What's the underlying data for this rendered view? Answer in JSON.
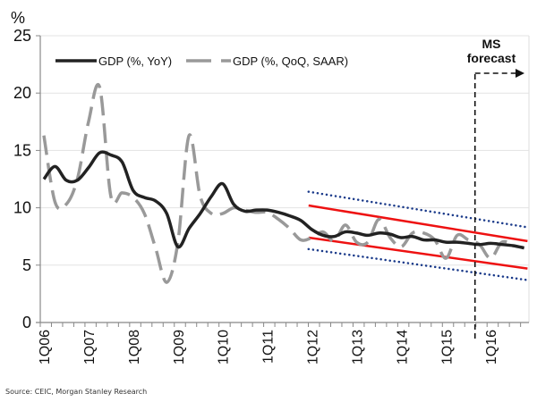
{
  "chart_data": {
    "type": "line",
    "title": "",
    "ylabel": "%",
    "xlabel": "",
    "ylim": [
      0,
      25
    ],
    "yticks": [
      0,
      5,
      10,
      15,
      20,
      25
    ],
    "grid": true,
    "legend_position": "top-left",
    "x_tick_labels": [
      "1Q06",
      "1Q07",
      "1Q08",
      "1Q09",
      "1Q10",
      "1Q11",
      "1Q12",
      "1Q13",
      "1Q14",
      "1Q15",
      "1Q16"
    ],
    "x": [
      "1Q06",
      "2Q06",
      "3Q06",
      "4Q06",
      "1Q07",
      "2Q07",
      "3Q07",
      "4Q07",
      "1Q08",
      "2Q08",
      "3Q08",
      "4Q08",
      "1Q09",
      "2Q09",
      "3Q09",
      "4Q09",
      "1Q10",
      "2Q10",
      "3Q10",
      "4Q10",
      "1Q11",
      "2Q11",
      "3Q11",
      "4Q11",
      "1Q12",
      "2Q12",
      "3Q12",
      "4Q12",
      "1Q13",
      "2Q13",
      "3Q13",
      "4Q13",
      "1Q14",
      "2Q14",
      "3Q14",
      "4Q14",
      "1Q15",
      "2Q15",
      "3Q15",
      "4Q15",
      "1Q16",
      "2Q16",
      "3Q16",
      "4Q16"
    ],
    "series": [
      {
        "name": "GDP (%, YoY)",
        "style": "solid",
        "color": "#222222",
        "values": [
          12.5,
          13.6,
          12.4,
          12.4,
          13.5,
          14.8,
          14.6,
          14.0,
          11.5,
          10.9,
          10.6,
          9.5,
          6.6,
          8.2,
          9.5,
          11.0,
          12.1,
          10.3,
          9.7,
          9.8,
          9.8,
          9.6,
          9.3,
          8.9,
          8.1,
          7.6,
          7.5,
          7.9,
          7.8,
          7.6,
          7.8,
          7.7,
          7.4,
          7.5,
          7.2,
          7.2,
          7.0,
          7.0,
          6.9,
          6.8,
          6.9,
          6.8,
          6.7,
          6.5
        ]
      },
      {
        "name": "GDP (%, QoQ, SAAR)",
        "style": "dashed",
        "color": "#999999",
        "values": [
          16.3,
          10.5,
          10.3,
          12.5,
          17.5,
          20.5,
          11.0,
          11.3,
          10.9,
          9.5,
          6.5,
          3.5,
          7.0,
          16.3,
          11.0,
          9.5,
          9.5,
          10.0,
          9.8,
          9.6,
          9.6,
          9.0,
          8.2,
          7.2,
          7.4,
          7.9,
          7.1,
          8.5,
          7.0,
          7.0,
          9.0,
          7.4,
          6.6,
          7.8,
          7.8,
          7.2,
          5.6,
          7.6,
          7.2,
          6.8,
          5.6,
          7.0,
          6.8,
          null
        ]
      }
    ],
    "trend_channels": [
      {
        "name": "upper-red-channel",
        "color": "#ee1111",
        "style": "solid",
        "from": {
          "q": "1Q12",
          "value": 10.2
        },
        "to": {
          "q": "4Q16",
          "value": 7.1
        }
      },
      {
        "name": "lower-red-channel",
        "color": "#ee1111",
        "style": "solid",
        "from": {
          "q": "1Q12",
          "value": 7.4
        },
        "to": {
          "q": "4Q16",
          "value": 4.7
        }
      },
      {
        "name": "upper-blue-band",
        "color": "#1a3a8a",
        "style": "dotted",
        "from": {
          "q": "1Q12",
          "value": 11.4
        },
        "to": {
          "q": "4Q16",
          "value": 8.3
        }
      },
      {
        "name": "lower-blue-band",
        "color": "#1a3a8a",
        "style": "dotted",
        "from": {
          "q": "1Q12",
          "value": 6.4
        },
        "to": {
          "q": "4Q16",
          "value": 3.7
        }
      }
    ],
    "forecast_marker": {
      "label_line1": "MS",
      "label_line2": "forecast",
      "start_quarter_index": 38.6
    },
    "source": "Source: CEIC, Morgan Stanley Research"
  }
}
